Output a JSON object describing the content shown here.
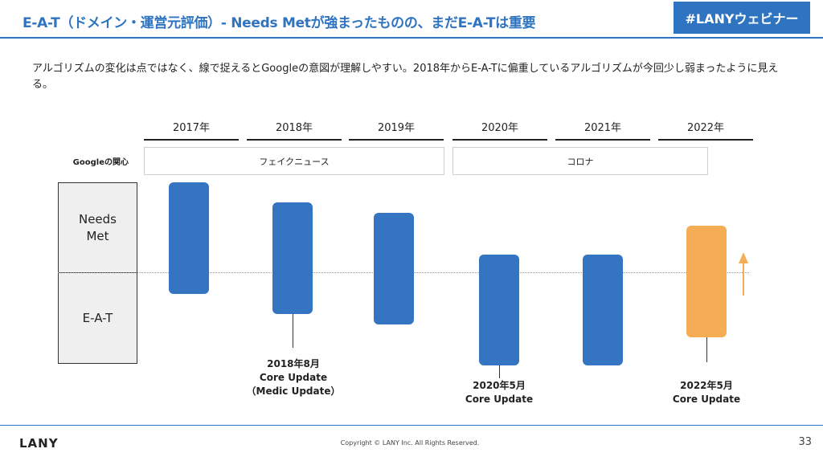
{
  "header": {
    "title": "E-A-T（ドメイン・運営元評価）- Needs Metが強まったものの、まだE-A-Tは重要",
    "badge": "#LANYウェビナー"
  },
  "description": "アルゴリズムの変化は点ではなく、線で捉えるとGoogleの意図が理解しやすい。2018年からE-A-Tに偏重しているアルゴリズムが今回少し弱まったように見える。",
  "timeline": {
    "years": [
      "2017年",
      "2018年",
      "2019年",
      "2020年",
      "2021年",
      "2022年"
    ],
    "concern_label": "Googleの関心",
    "concerns": [
      "フェイクニュース",
      "コロナ"
    ],
    "categories": [
      "Needs\nMet",
      "E-A-T"
    ]
  },
  "chart_data": {
    "type": "candlestick",
    "axis_categories": [
      "Needs Met",
      "E-A-T"
    ],
    "midline": 0,
    "bars": [
      {
        "year": "2017年",
        "top": 1.0,
        "bottom": -0.24,
        "color": "#3474c1"
      },
      {
        "year": "2018年",
        "top": 0.78,
        "bottom": -0.46,
        "wick_bottom": -0.84,
        "color": "#3474c1"
      },
      {
        "year": "2019年",
        "top": 0.66,
        "bottom": -0.58,
        "color": "#3474c1"
      },
      {
        "year": "2020年",
        "top": 0.2,
        "bottom": -1.04,
        "wick_bottom": -1.18,
        "color": "#3474c1"
      },
      {
        "year": "2021年",
        "top": 0.2,
        "bottom": -1.04,
        "color": "#3474c1"
      },
      {
        "year": "2022年",
        "top": 0.52,
        "bottom": -0.72,
        "wick_bottom": -1.0,
        "color": "#f5ad55"
      }
    ],
    "annotations": [
      "2018年8月\nCore Update\n（Medic Update）",
      "2020年5月\nCore Update",
      "2022年5月\nCore Update"
    ]
  },
  "colors": {
    "accent": "#2f74c0",
    "bar_blue": "#3474c1",
    "bar_orange": "#f5ad55"
  },
  "footer": {
    "logo": "LANY",
    "copyright": "Copyright © LANY Inc. All Rights Reserved.",
    "page": "33"
  }
}
